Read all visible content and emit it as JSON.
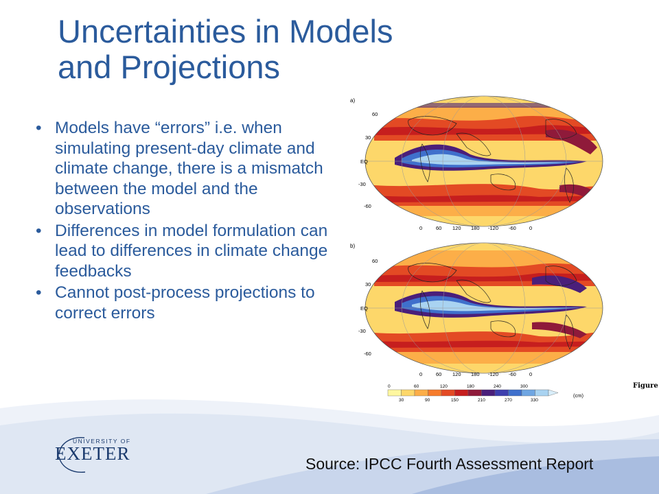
{
  "slide": {
    "title_line1": "Uncertainties in Models",
    "title_line2": "and Projections",
    "bullet_char": "•",
    "bullets": [
      "Models have “errors” i.e. when simulating present-day climate and climate change, there is a mismatch between the model and the observations",
      "Differences in model formulation can lead to differences in climate change feedbacks",
      "Cannot post-process projections to correct errors"
    ],
    "source": "Source: IPCC Fourth Assessment Report"
  },
  "figure": {
    "panel_a_label": "a)",
    "panel_b_label": "b)",
    "lat_labels": [
      "60",
      "30",
      "EQ",
      "-30",
      "-60"
    ],
    "lon_labels": [
      "0",
      "60",
      "120",
      "180",
      "-120",
      "-60",
      "0"
    ],
    "colorbar_top_labels": [
      "0",
      "60",
      "120",
      "180",
      "240",
      "300"
    ],
    "colorbar_bottom_labels": [
      "30",
      "90",
      "150",
      "210",
      "270",
      "330"
    ],
    "colorbar_unit": "(cm)",
    "colorbar_colors": [
      "#fff7a0",
      "#fdd76a",
      "#fcae48",
      "#f67b2b",
      "#e34a24",
      "#c61e1e",
      "#8f1a3a",
      "#4a1f7a",
      "#3d3fae",
      "#3f70cc",
      "#6fa6e2",
      "#a9d3f1"
    ],
    "clipped_text": "Figure"
  },
  "logo": {
    "university_of": "UNIVERSITY OF",
    "name": "EXETER"
  },
  "colors": {
    "title": "#2b5b9c",
    "footer_wave_light": "#dfe7f3",
    "footer_wave_dark": "#a9bde0"
  }
}
